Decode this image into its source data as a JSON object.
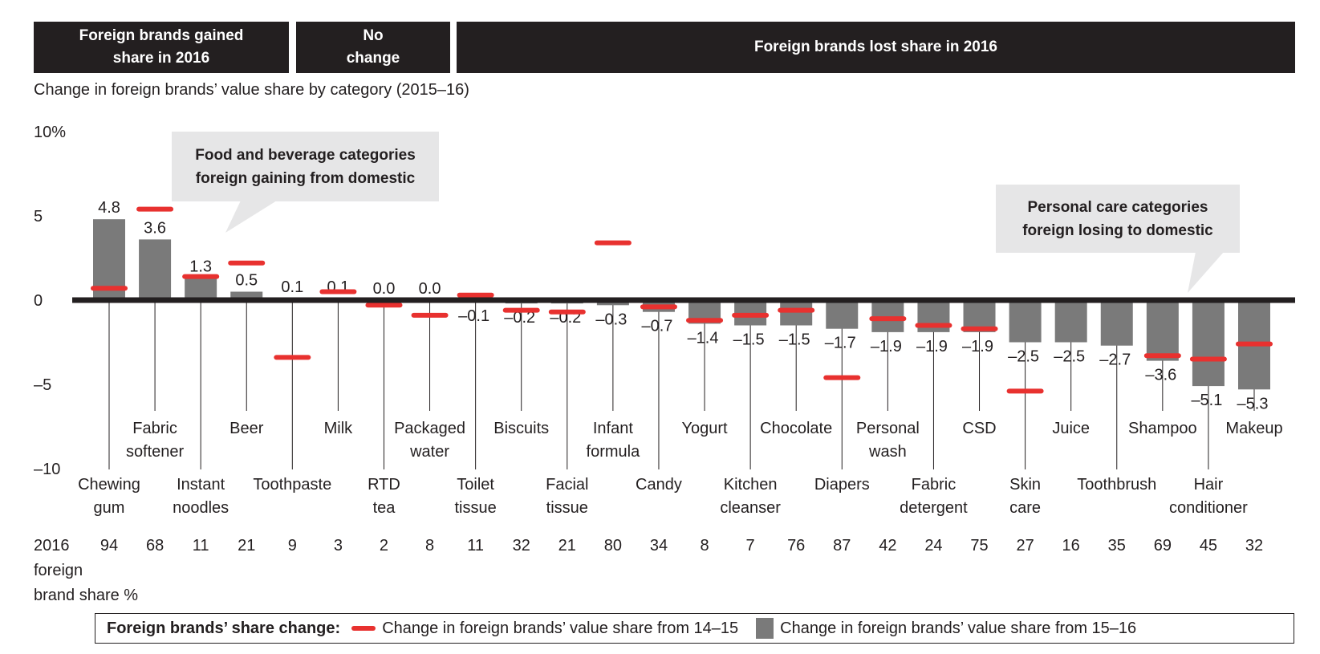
{
  "header": {
    "gained": [
      "Foreign brands gained",
      "share in 2016"
    ],
    "nochange": [
      "No",
      "change"
    ],
    "lost": "Foreign brands lost share in 2016"
  },
  "subtitle": "Change in foreign brands’ value share by category (2015–16)",
  "callouts": {
    "food": [
      "Food and beverage categories",
      "foreign gaining from domestic"
    ],
    "personal": [
      "Personal care categories",
      "foreign losing to domestic"
    ]
  },
  "share_row": {
    "label": [
      "2016",
      "foreign",
      "brand share %"
    ],
    "values": [
      "94",
      "68",
      "11",
      "21",
      "9",
      "3",
      "2",
      "8",
      "11",
      "32",
      "21",
      "80",
      "34",
      "8",
      "7",
      "76",
      "87",
      "42",
      "24",
      "75",
      "27",
      "16",
      "35",
      "69",
      "45",
      "32"
    ]
  },
  "legend": {
    "title": "Foreign brands’ share change:",
    "red_label": "Change in foreign brands’ value share from 14–15",
    "grey_label": "Change in foreign brands’ value share from 15–16"
  },
  "colors": {
    "bar": "#7a7a7a",
    "dash": "#e8312f",
    "dark": "#231f20",
    "callout": "#e6e6e7"
  },
  "chart_data": {
    "type": "bar",
    "ylim": [
      -10,
      10
    ],
    "yticks": [
      10,
      5,
      0,
      -5,
      -10
    ],
    "ytick_labels": [
      "10%",
      "5",
      "0",
      "–5",
      "–10"
    ],
    "grid": false,
    "legend_position": "bottom",
    "categories": [
      "Chewing gum",
      "Fabric softener",
      "Instant noodles",
      "Beer",
      "Toothpaste",
      "Milk",
      "RTD tea",
      "Packaged water",
      "Toilet tissue",
      "Biscuits",
      "Facial tissue",
      "Infant formula",
      "Candy",
      "Yogurt",
      "Kitchen cleanser",
      "Chocolate",
      "Diapers",
      "Personal wash",
      "Fabric detergent",
      "CSD",
      "Skin care",
      "Juice",
      "Toothbrush",
      "Shampoo",
      "Hair conditioner",
      "Makeup"
    ],
    "series": [
      {
        "name": "Change in foreign brands’ value share from 15–16",
        "mark": "bar",
        "values": [
          4.8,
          3.6,
          1.3,
          0.5,
          0.1,
          0.1,
          0.0,
          0.0,
          -0.1,
          -0.2,
          -0.2,
          -0.3,
          -0.7,
          -1.4,
          -1.5,
          -1.5,
          -1.7,
          -1.9,
          -1.9,
          -1.9,
          -2.5,
          -2.5,
          -2.7,
          -3.6,
          -5.1,
          -5.3
        ],
        "labels": [
          "4.8",
          "3.6",
          "1.3",
          "0.5",
          "0.1",
          "0.1",
          "0.0",
          "0.0",
          "–0.1",
          "–0.2",
          "–0.2",
          "–0.3",
          "–0.7",
          "–1.4",
          "–1.5",
          "–1.5",
          "–1.7",
          "–1.9",
          "–1.9",
          "–1.9",
          "–2.5",
          "–2.5",
          "–2.7",
          "–3.6",
          "–5.1",
          "–5.3"
        ]
      },
      {
        "name": "Change in foreign brands’ value share from 14–15",
        "mark": "dash",
        "values": [
          0.7,
          5.4,
          1.4,
          2.2,
          -3.4,
          0.5,
          -0.3,
          -0.9,
          0.3,
          -0.6,
          -0.7,
          3.4,
          -0.4,
          -1.2,
          -0.9,
          -0.6,
          -4.6,
          -1.1,
          -1.5,
          -1.7,
          -5.4,
          null,
          null,
          -3.3,
          -3.5,
          -2.6
        ]
      }
    ]
  }
}
